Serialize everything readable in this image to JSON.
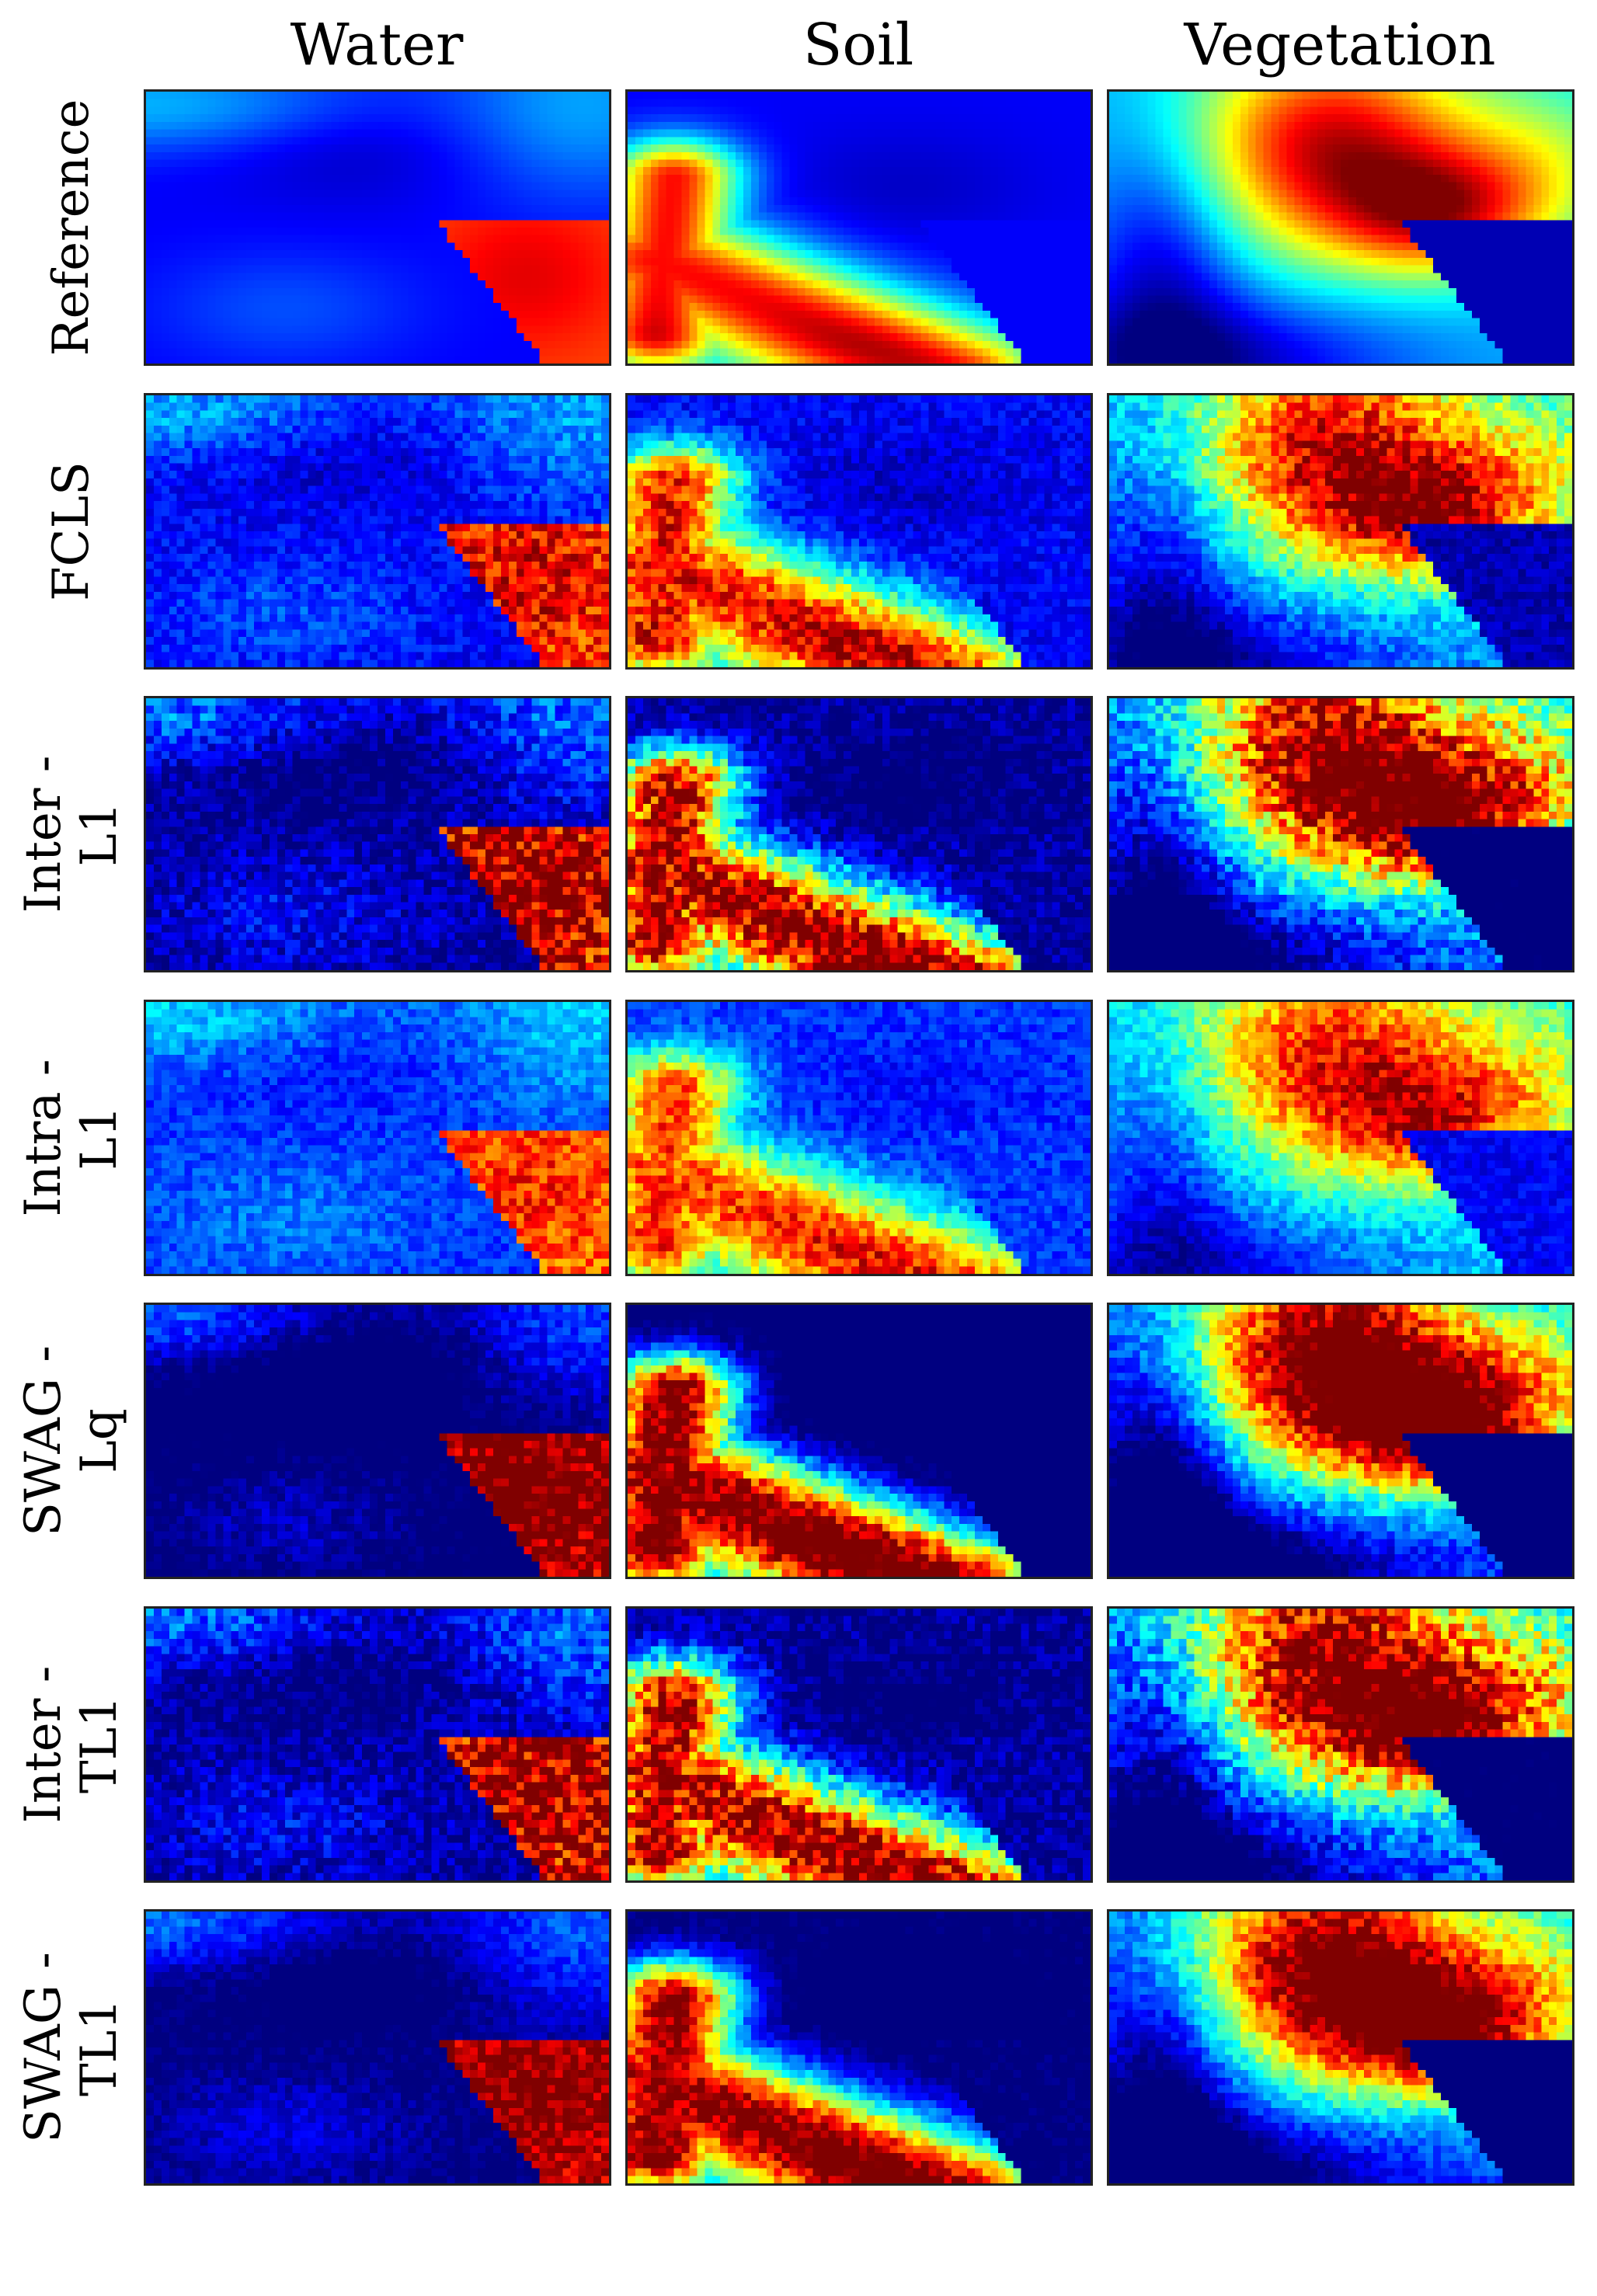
{
  "chart_data": {
    "type": "heatmap",
    "colormap": "jet",
    "grid": false,
    "columns": [
      "Water",
      "Soil",
      "Vegetation"
    ],
    "rows": [
      {
        "label": "Reference",
        "noise": 0.0,
        "sharp": 1.0
      },
      {
        "label": "FCLS",
        "noise": 0.09,
        "sharp": 1.0
      },
      {
        "label": "Inter -\nL1",
        "noise": 0.14,
        "sharp": 1.25
      },
      {
        "label": "Intra -\nL1",
        "noise": 0.08,
        "sharp": 0.85
      },
      {
        "label": "SWAG -\nLq",
        "noise": 0.1,
        "sharp": 1.45
      },
      {
        "label": "Inter -\nTL1",
        "noise": 0.14,
        "sharp": 1.25
      },
      {
        "label": "SWAG -\nTL1",
        "noise": 0.08,
        "sharp": 1.35
      }
    ]
  }
}
